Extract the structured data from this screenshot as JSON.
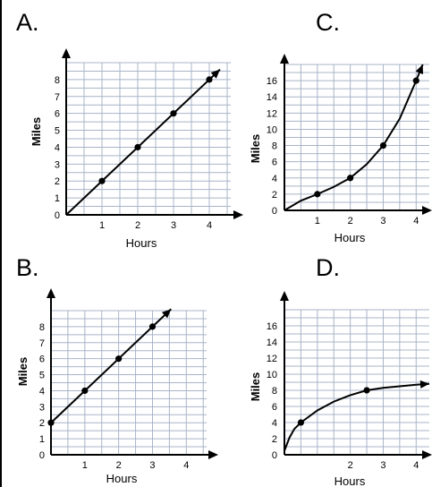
{
  "page": {
    "accent": "#000000",
    "grid_color": "#a8b4c8"
  },
  "chart_data": [
    {
      "id": "A",
      "panel_label": "A.",
      "type": "line",
      "xlabel": "Hours",
      "ylabel": "Miles",
      "xlim": [
        0,
        4.6
      ],
      "ylim": [
        0,
        9
      ],
      "x_ticks": [
        1,
        2,
        3,
        4
      ],
      "y_ticks": [
        0,
        1,
        2,
        3,
        4,
        5,
        6,
        7,
        8
      ],
      "grid": true,
      "points": [
        [
          1,
          2
        ],
        [
          2,
          4
        ],
        [
          3,
          6
        ],
        [
          4,
          8
        ]
      ],
      "curve": [
        [
          0,
          0
        ],
        [
          4.3,
          8.6
        ]
      ]
    },
    {
      "id": "C",
      "panel_label": "C.",
      "type": "line",
      "xlabel": "Hours",
      "ylabel": "Miles",
      "xlim": [
        0,
        4.4
      ],
      "ylim": [
        0,
        18
      ],
      "x_ticks": [
        1,
        2,
        3,
        4
      ],
      "y_ticks": [
        0,
        2,
        4,
        6,
        8,
        10,
        12,
        14,
        16
      ],
      "grid": true,
      "points": [
        [
          1,
          2
        ],
        [
          2,
          4
        ],
        [
          3,
          8
        ],
        [
          4,
          16
        ]
      ],
      "curve": [
        [
          0,
          0
        ],
        [
          0.5,
          1.2
        ],
        [
          1,
          2
        ],
        [
          1.5,
          2.9
        ],
        [
          2,
          4
        ],
        [
          2.5,
          5.7
        ],
        [
          3,
          8
        ],
        [
          3.5,
          11.3
        ],
        [
          4,
          16
        ],
        [
          4.2,
          18
        ]
      ]
    },
    {
      "id": "B",
      "panel_label": "B.",
      "type": "line",
      "xlabel": "Hours",
      "ylabel": "Miles",
      "xlim": [
        0,
        4.6
      ],
      "ylim": [
        0,
        9
      ],
      "x_ticks": [
        1,
        2,
        3,
        4
      ],
      "y_ticks": [
        0,
        1,
        2,
        3,
        4,
        5,
        6,
        7,
        8
      ],
      "grid": true,
      "points": [
        [
          0,
          2
        ],
        [
          1,
          4
        ],
        [
          2,
          6
        ],
        [
          3,
          8
        ]
      ],
      "curve": [
        [
          0,
          2
        ],
        [
          3.55,
          9.1
        ]
      ]
    },
    {
      "id": "D",
      "panel_label": "D.",
      "type": "line",
      "xlabel": "Hours",
      "ylabel": "Miles",
      "xlim": [
        0,
        4.4
      ],
      "ylim": [
        0,
        18
      ],
      "x_ticks": [
        2,
        3,
        4
      ],
      "y_ticks": [
        0,
        2,
        4,
        6,
        8,
        10,
        12,
        14,
        16
      ],
      "grid": true,
      "points": [
        [
          0.5,
          4
        ],
        [
          2.5,
          8
        ]
      ],
      "curve": [
        [
          0,
          0.5
        ],
        [
          0.15,
          2.1
        ],
        [
          0.3,
          3.2
        ],
        [
          0.5,
          4
        ],
        [
          1,
          5.5
        ],
        [
          1.5,
          6.6
        ],
        [
          2,
          7.4
        ],
        [
          2.5,
          8
        ],
        [
          3,
          8.3
        ],
        [
          3.5,
          8.5
        ],
        [
          4,
          8.7
        ],
        [
          4.4,
          8.8
        ]
      ]
    }
  ]
}
